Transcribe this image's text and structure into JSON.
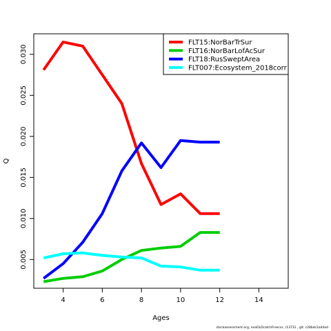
{
  "chart_data": {
    "type": "line",
    "xlabel": "Ages",
    "ylabel": "Q",
    "xlim": [
      2.5,
      15.5
    ],
    "ylim": [
      0.0015,
      0.0325
    ],
    "xticks": [
      4,
      6,
      8,
      10,
      12,
      14
    ],
    "yticks": [
      0.005,
      0.01,
      0.015,
      0.02,
      0.025,
      0.03
    ],
    "ytick_labels": [
      "0.005",
      "0.010",
      "0.015",
      "0.020",
      "0.025",
      "0.030"
    ],
    "legend_position": "top-right",
    "grid": false,
    "series": [
      {
        "name": "FLT15:NorBarTrSur",
        "color": "#ff0000",
        "x": [
          3,
          4,
          5,
          6,
          7,
          8,
          9,
          10,
          11,
          12
        ],
        "values": [
          0.0281,
          0.0315,
          0.031,
          0.0275,
          0.024,
          0.0167,
          0.0117,
          0.013,
          0.0106,
          0.0106
        ]
      },
      {
        "name": "FLT16:NorBarLofAcSur",
        "color": "#00cd00",
        "x": [
          3,
          4,
          5,
          6,
          7,
          8,
          9,
          10,
          11,
          12
        ],
        "values": [
          0.0023,
          0.0027,
          0.0029,
          0.0036,
          0.005,
          0.0061,
          0.0064,
          0.0066,
          0.0083,
          0.0083
        ]
      },
      {
        "name": "FLT18:RusSweptArea",
        "color": "#0000ff",
        "x": [
          3,
          4,
          5,
          6,
          7,
          8,
          9,
          10,
          11,
          12
        ],
        "values": [
          0.0027,
          0.0045,
          0.0071,
          0.0106,
          0.0158,
          0.0192,
          0.0162,
          0.0195,
          0.0193,
          0.0193
        ]
      },
      {
        "name": "FLT007:Ecosystem_2018corr",
        "color": "#00ffff",
        "x": [
          3,
          4,
          5,
          6,
          7,
          8,
          9,
          10,
          11,
          12
        ],
        "values": [
          0.0052,
          0.0057,
          0.0058,
          0.0055,
          0.0053,
          0.0052,
          0.0042,
          0.0041,
          0.0037,
          0.0037
        ]
      }
    ]
  },
  "footer": "stockassessment.org, neaOLDcatchFreecor, r13731 , git: c28bdc2a44ad"
}
